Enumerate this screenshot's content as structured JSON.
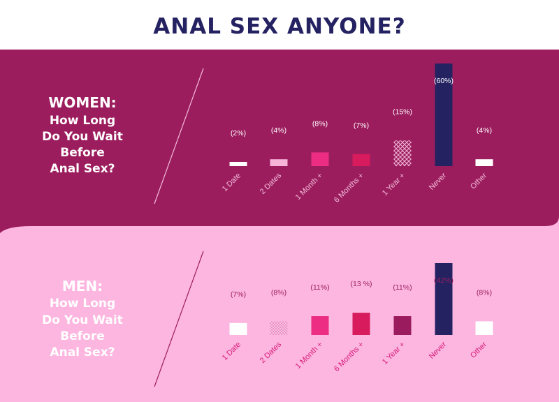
{
  "title": "ANAL SEX ANYONE?",
  "colors": {
    "navy": "#252262",
    "women_bg": "#9c1d5e",
    "men_bg": "#fcb6e0",
    "hot_pink": "#ed2d84",
    "crimson": "#d81b5c",
    "plum": "#9b1c5e",
    "light_pink": "#f8b3d9",
    "white": "#ffffff"
  },
  "women": {
    "heading_lines": [
      "WOMEN:",
      "How Long",
      "Do You Wait",
      "Before",
      "Anal Sex?"
    ]
  },
  "men": {
    "heading_lines": [
      "MEN:",
      "How Long",
      "Do You Wait",
      "Before",
      "Anal Sex?"
    ]
  },
  "chart_data": [
    {
      "type": "bar",
      "title": "WOMEN: How Long Do You Wait Before Anal Sex?",
      "categories": [
        "1 Date",
        "2 Dates",
        "1 Month +",
        "6 Months +",
        "1 Year +",
        "Never",
        "Other"
      ],
      "values": [
        2,
        4,
        8,
        7,
        15,
        60,
        4
      ],
      "value_labels": [
        "(2%)",
        "(4%)",
        "(8%)",
        "(7%)",
        "(15%)",
        "(60%)",
        "(4%)"
      ],
      "unit": "%",
      "ylim": [
        0,
        60
      ],
      "bar_styles": [
        "white",
        "light_pink",
        "hot_pink",
        "crimson",
        "crosshatch",
        "navy",
        "white"
      ],
      "grid": false,
      "legend": "none"
    },
    {
      "type": "bar",
      "title": "MEN: How Long Do You Wait Before Anal Sex?",
      "categories": [
        "1 Date",
        "2 Dates",
        "1 Month +",
        "6 Months +",
        "1 Year +",
        "Never",
        "Other"
      ],
      "values": [
        7,
        8,
        11,
        13,
        11,
        42,
        8
      ],
      "value_labels": [
        "(7%)",
        "(8%)",
        "(11%)",
        "(13 %)",
        "(11%)",
        "(42%)",
        "(8%)"
      ],
      "unit": "%",
      "ylim": [
        0,
        42
      ],
      "bar_styles": [
        "white",
        "dotted",
        "hot_pink",
        "crimson",
        "plum",
        "navy",
        "white"
      ],
      "grid": false,
      "legend": "none"
    }
  ]
}
